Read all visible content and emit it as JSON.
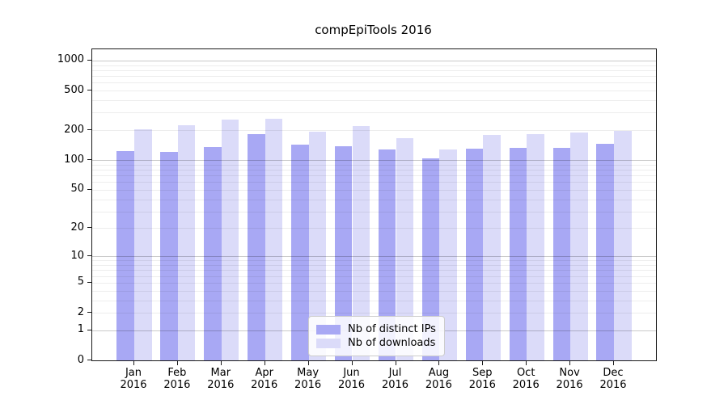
{
  "chart_data": {
    "type": "bar",
    "title": "compEpiTools 2016",
    "categories": [
      "Jan",
      "Feb",
      "Mar",
      "Apr",
      "May",
      "Jun",
      "Jul",
      "Aug",
      "Sep",
      "Oct",
      "Nov",
      "Dec"
    ],
    "year": "2016",
    "series": [
      {
        "name": "Nb of distinct IPs",
        "color": "#a8a8f4",
        "values": [
          124,
          120,
          136,
          183,
          142,
          138,
          128,
          105,
          130,
          133,
          133,
          145
        ]
      },
      {
        "name": "Nb of downloads",
        "color": "#dbdbf9",
        "values": [
          203,
          224,
          257,
          259,
          194,
          221,
          166,
          129,
          179,
          183,
          188,
          198
        ]
      }
    ],
    "yscale": "log1p",
    "ylim": [
      0,
      1295
    ],
    "yticks": [
      0,
      1,
      2,
      5,
      10,
      20,
      50,
      100,
      200,
      500,
      1000
    ],
    "grid": true,
    "legend_position": "lower center"
  }
}
